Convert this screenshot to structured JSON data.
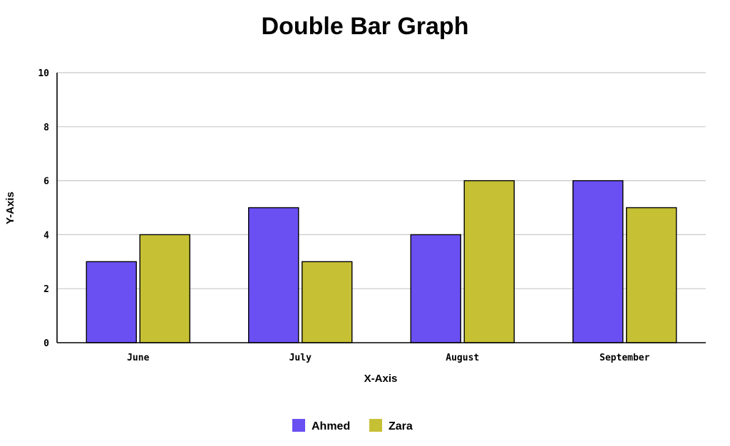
{
  "chart_data": {
    "type": "bar",
    "title": "Double Bar Graph",
    "xlabel": "X-Axis",
    "ylabel": "Y-Axis",
    "categories": [
      "June",
      "July",
      "August",
      "September"
    ],
    "series": [
      {
        "name": "Ahmed",
        "values": [
          3,
          5,
          4,
          6
        ],
        "color": "#6a50f2"
      },
      {
        "name": "Zara",
        "values": [
          4,
          3,
          6,
          5
        ],
        "color": "#c6c035"
      }
    ],
    "ylim": [
      0,
      10
    ],
    "yticks": [
      0,
      2,
      4,
      6,
      8,
      10
    ],
    "grid": true,
    "legend_position": "bottom-center"
  }
}
